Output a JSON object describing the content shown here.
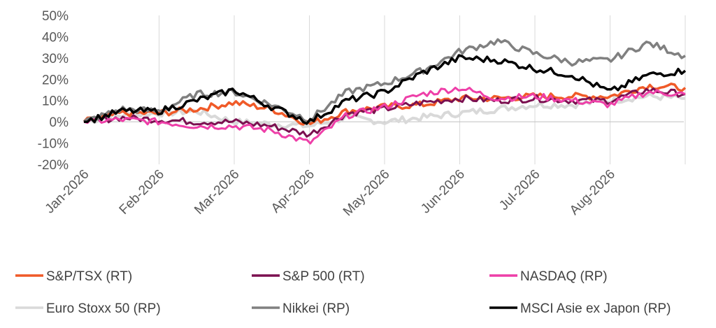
{
  "chart_data": {
    "type": "line",
    "title": "",
    "xlabel": "",
    "ylabel": "",
    "ylim": [
      -20,
      50
    ],
    "yticks": [
      "50%",
      "40%",
      "30%",
      "20%",
      "10%",
      "0%",
      "-10%",
      "-20%"
    ],
    "xticks": [
      "Jan-2026",
      "Feb-2026",
      "Mar-2026",
      "Apr-2026",
      "May-2026",
      "Jun-2026",
      "Jul-2026",
      "Aug-2026"
    ],
    "grid": "vertical lines at month starts",
    "legend": "bottom",
    "x_months": [
      0,
      0.5,
      1,
      1.5,
      2,
      2.5,
      3,
      3.5,
      4,
      4.5,
      5,
      5.5,
      6,
      6.5,
      7,
      7.5,
      8
    ],
    "series": [
      {
        "name": "S&P/TSX (RT)",
        "color": "#f05a28",
        "values": [
          0,
          4,
          4,
          6,
          9,
          6,
          -1,
          5,
          7,
          8,
          11,
          11,
          12,
          12,
          12,
          17,
          16
        ]
      },
      {
        "name": "S&P 500 (RT)",
        "color": "#7b1050",
        "values": [
          0,
          2,
          1,
          0,
          0,
          -2,
          -6,
          4,
          6,
          9,
          11,
          10,
          11,
          10,
          10,
          15,
          13
        ]
      },
      {
        "name": "NASDAQ (RP)",
        "color": "#ee3fa8",
        "values": [
          0,
          1,
          0,
          -2,
          -2,
          -4,
          -10,
          3,
          7,
          13,
          16,
          11,
          12,
          10,
          8,
          14,
          13
        ]
      },
      {
        "name": "Euro Stoxx 50 (RP)",
        "color": "#d9d9d9",
        "values": [
          0,
          3,
          4,
          5,
          0,
          -1,
          -2,
          2,
          0,
          2,
          4,
          6,
          8,
          8,
          10,
          12,
          11
        ]
      },
      {
        "name": "Nikkei (RP)",
        "color": "#808080",
        "values": [
          0,
          6,
          5,
          13,
          14,
          8,
          1,
          14,
          18,
          24,
          33,
          38,
          32,
          28,
          29,
          37,
          31
        ]
      },
      {
        "name": "MSCI Asie ex Japon (RP)",
        "color": "#000000",
        "values": [
          0,
          5,
          5,
          10,
          15,
          7,
          0,
          10,
          14,
          23,
          30,
          29,
          25,
          22,
          14,
          22,
          24
        ]
      }
    ]
  }
}
